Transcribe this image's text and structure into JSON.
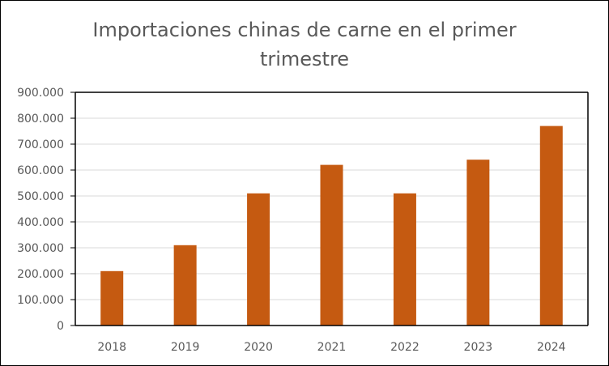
{
  "chart_data": {
    "type": "bar",
    "title_line1": "Importaciones chinas de carne en el primer",
    "title_line2": "trimestre",
    "categories": [
      "2018",
      "2019",
      "2020",
      "2021",
      "2022",
      "2023",
      "2024"
    ],
    "values": [
      210000,
      310000,
      510000,
      620000,
      510000,
      640000,
      770000
    ],
    "y_ticks": [
      "0",
      "100.000",
      "200.000",
      "300.000",
      "400.000",
      "500.000",
      "600.000",
      "700.000",
      "800.000",
      "900.000"
    ],
    "ylim": [
      0,
      900000
    ],
    "xlabel": "",
    "ylabel": "",
    "grid": true,
    "legend": "none",
    "bar_color": "#C55A11",
    "grid_color": "#D9D9D9"
  }
}
